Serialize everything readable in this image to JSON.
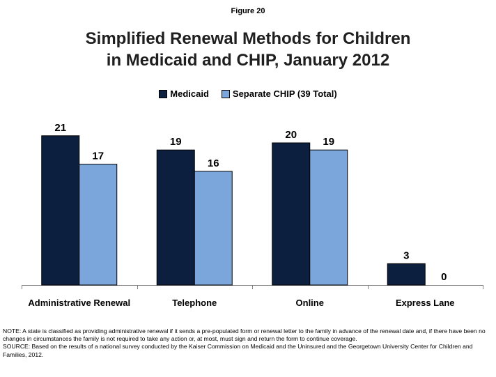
{
  "figure_label": "Figure 20",
  "title_lines": [
    "Simplified Renewal Methods for Children",
    "in Medicaid and CHIP, January 2012"
  ],
  "colors": {
    "medicaid": "#0c1f3f",
    "chip": "#7ba6dc"
  },
  "chart_data": {
    "type": "bar",
    "title": "Simplified Renewal Methods for Children in Medicaid and CHIP, January 2012",
    "categories": [
      "Administrative Renewal",
      "Telephone",
      "Online",
      "Express Lane"
    ],
    "series": [
      {
        "name": "Medicaid",
        "values": [
          21,
          19,
          20,
          3
        ]
      },
      {
        "name": "Separate CHIP (39 Total)",
        "values": [
          17,
          16,
          19,
          0
        ]
      }
    ],
    "ylim": [
      0,
      21
    ],
    "legend": "top-center",
    "grid": false,
    "data_labels": true
  },
  "note": "NOTE: A state is classified as providing administrative renewal if it sends a pre-populated form or renewal letter to the family in advance of the renewal date and, if there have been no changes in circumstances the family is not required to take any action or, at most, must sign and return the form to continue coverage.",
  "source": "SOURCE: Based on the results of a national survey conducted by the Kaiser Commission on Medicaid and the Uninsured and the Georgetown University Center for Children and Families, 2012."
}
